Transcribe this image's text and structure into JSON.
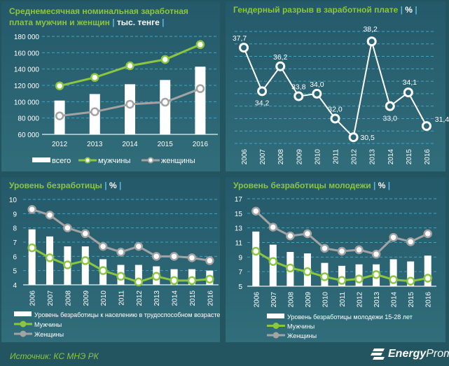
{
  "colors": {
    "men": "#8cc63f",
    "women": "#a3a3a3",
    "bars": "#ffffff",
    "gap": "#ffffff",
    "grid": "#3fa3c4",
    "title": "#8cc63f"
  },
  "source": "Источник: КС МНЭ РК",
  "logo": {
    "text_bold": "Energy",
    "text_light": "Prom",
    "icon": "energyprom-logo-icon"
  },
  "chart_data": [
    {
      "type": "bar+line",
      "title": "Среднемесячная номинальная заработная плата мужчин и женщин",
      "unit": "тыс. тенге",
      "categories": [
        "2012",
        "2013",
        "2014",
        "2015",
        "2016"
      ],
      "ylim": [
        60000,
        180000
      ],
      "yticks": [
        "60 000",
        "80 000",
        "100 000",
        "120 000",
        "140 000",
        "160 000",
        "180 000"
      ],
      "grid": true,
      "legend": "bottom",
      "series": [
        {
          "name": "всего",
          "kind": "bar",
          "values": [
            101400,
            109400,
            121400,
            126600,
            142900
          ]
        },
        {
          "name": "мужчины",
          "kind": "line",
          "values": [
            119400,
            129700,
            144000,
            151700,
            170000
          ]
        },
        {
          "name": "женщины",
          "kind": "line",
          "values": [
            82600,
            87700,
            96900,
            99400,
            116000
          ]
        }
      ]
    },
    {
      "type": "line",
      "title": "Гендерный разрыв в заработной плате",
      "unit": "%",
      "categories": [
        "2006",
        "2007",
        "2008",
        "2009",
        "2010",
        "2011",
        "2012",
        "2013",
        "2014",
        "2015",
        "2016"
      ],
      "ylim": [
        30,
        39
      ],
      "grid": true,
      "series": [
        {
          "kind": "line",
          "values": [
            37.7,
            34.2,
            36.2,
            33.8,
            34.0,
            32.0,
            30.5,
            38.2,
            33.0,
            34.1,
            31.4
          ]
        }
      ],
      "data_labels": [
        "37,7",
        "34,2",
        "36,2",
        "33,8",
        "34,0",
        "32,0",
        "30,5",
        "38,2",
        "33,0",
        "34,1",
        "31,4"
      ]
    },
    {
      "type": "bar+line",
      "title": "Уровень безработицы",
      "unit": "%",
      "categories": [
        "2006",
        "2007",
        "2008",
        "2009",
        "2010",
        "2011",
        "2012",
        "2013",
        "2014",
        "2015",
        "2016"
      ],
      "ylim": [
        4,
        10
      ],
      "yticks": [
        "4",
        "5",
        "6",
        "7",
        "8",
        "9",
        "10"
      ],
      "grid": true,
      "legend": "bottom",
      "series": [
        {
          "name": "Уровень безработицы к населению в трудоспособном возрасте",
          "kind": "bar",
          "values": [
            7.9,
            7.4,
            6.7,
            6.7,
            5.8,
            5.4,
            5.4,
            5.3,
            5.1,
            5.1,
            5.0
          ]
        },
        {
          "name": "Мужчины",
          "kind": "line",
          "values": [
            6.6,
            5.9,
            5.4,
            5.7,
            5.0,
            4.6,
            4.2,
            4.6,
            4.3,
            4.3,
            4.4
          ]
        },
        {
          "name": "Женщины",
          "kind": "line",
          "values": [
            9.3,
            8.9,
            8.0,
            7.6,
            6.7,
            6.3,
            6.7,
            6.0,
            6.0,
            5.9,
            5.7
          ]
        }
      ]
    },
    {
      "type": "bar+line",
      "title": "Уровень безработицы молодежи",
      "unit": "%",
      "categories": [
        "2006",
        "2007",
        "2008",
        "2009",
        "2010",
        "2011",
        "2012",
        "2013",
        "2014",
        "2015",
        "2016"
      ],
      "ylim": [
        5,
        17
      ],
      "yticks": [
        "5",
        "7",
        "9",
        "11",
        "13",
        "15",
        "17"
      ],
      "grid": true,
      "legend": "bottom",
      "series": [
        {
          "name": "Уровень безработицы молодежи 15-28 лет",
          "kind": "bar",
          "values": [
            12.5,
            10.7,
            9.7,
            9.5,
            8.2,
            7.8,
            8.0,
            8.0,
            8.7,
            8.4,
            9.2
          ]
        },
        {
          "name": "Мужчины",
          "kind": "line",
          "values": [
            9.8,
            8.4,
            7.5,
            7.0,
            6.3,
            5.8,
            6.0,
            6.6,
            5.9,
            5.7,
            6.1
          ]
        },
        {
          "name": "Женщины",
          "kind": "line",
          "values": [
            15.3,
            13.1,
            11.9,
            12.2,
            10.2,
            9.8,
            10.0,
            9.4,
            11.7,
            11.1,
            12.2
          ]
        }
      ]
    }
  ]
}
